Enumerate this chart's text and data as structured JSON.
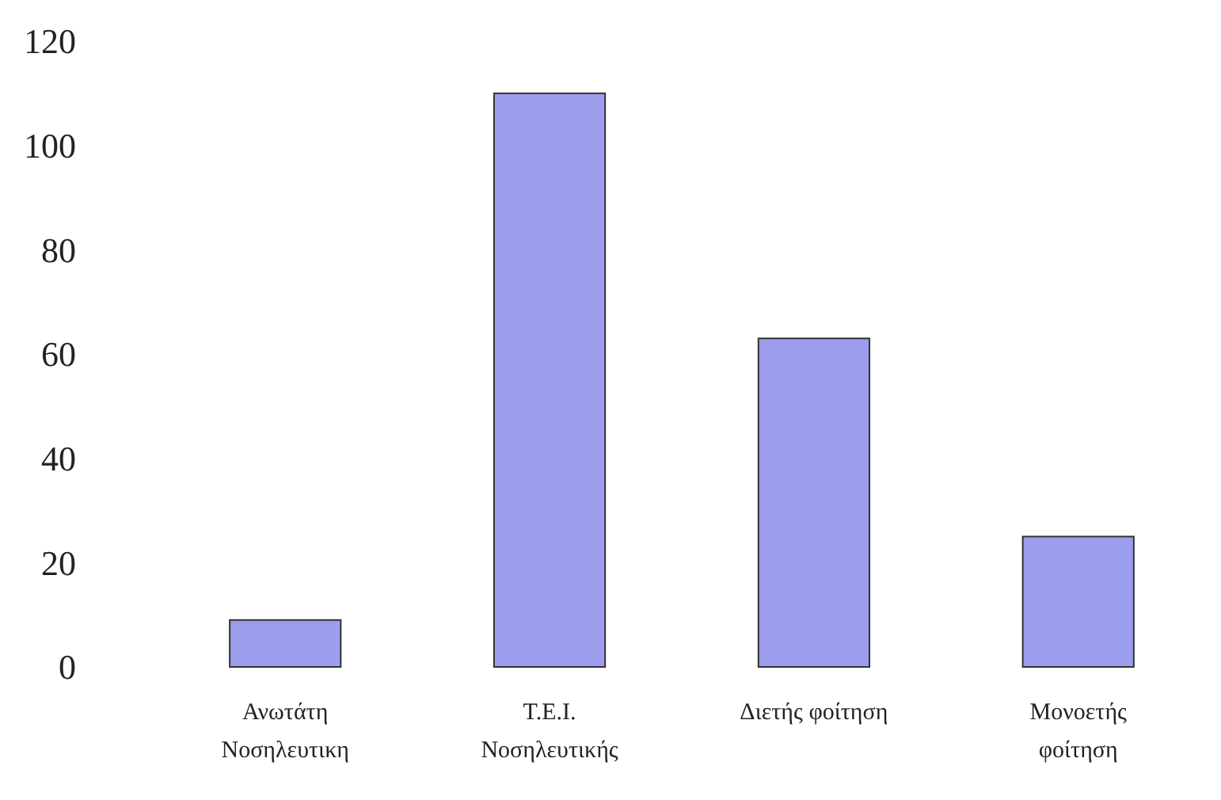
{
  "chart_data": {
    "type": "bar",
    "categories": [
      "Ανωτάτη\nΝοσηλευτικη",
      "Τ.Ε.Ι.\nΝοσηλευτικής",
      "Διετής φοίτηση",
      "Μονοετής\nφοίτηση"
    ],
    "values": [
      9,
      110,
      63,
      25
    ],
    "color": "#9d9ded",
    "ylim": [
      0,
      120
    ],
    "yticks": [
      0,
      20,
      40,
      60,
      80,
      100,
      120
    ],
    "grid": false
  }
}
